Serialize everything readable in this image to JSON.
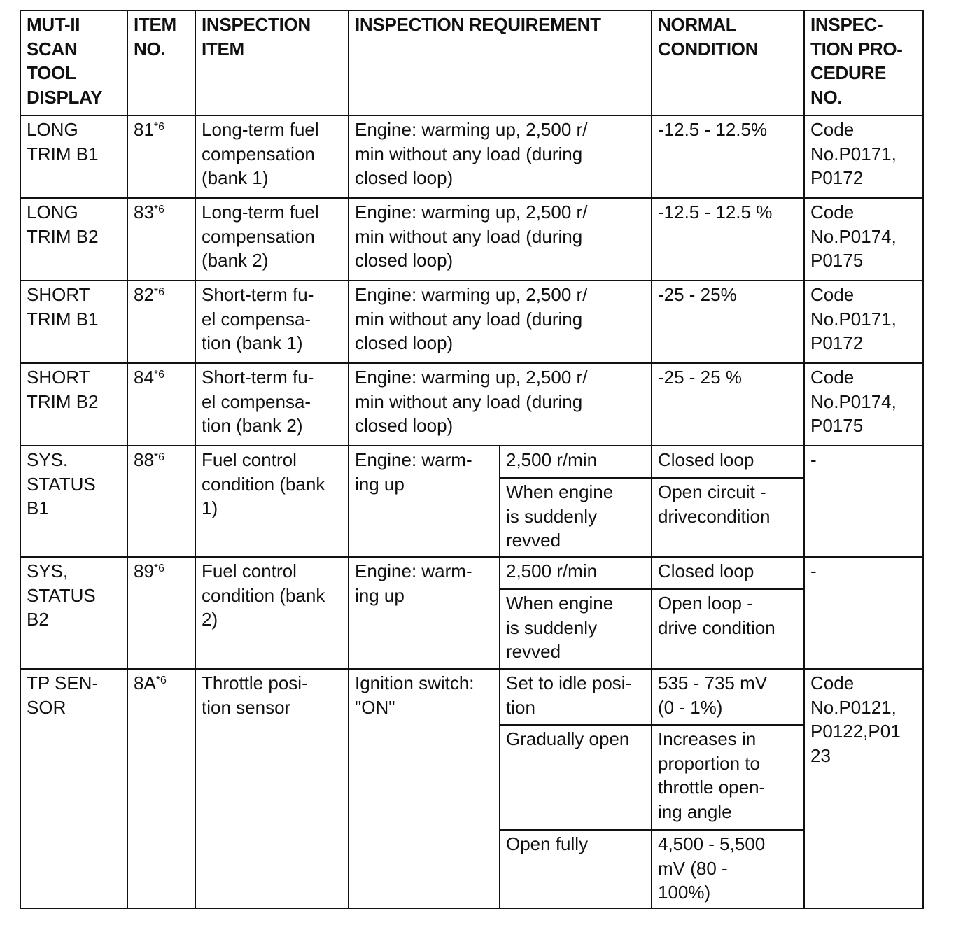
{
  "headers": [
    "MUT-II\nSCAN\nTOOL\nDISPLAY",
    "ITEM\nNO.",
    "INSPECTION\nITEM",
    "INSPECTION REQUIREMENT",
    "NORMAL\nCONDITION",
    "INSPEC-\nTION PRO-\nCEDURE\nNO."
  ],
  "rows": [
    {
      "display": "LONG\nTRIM B1",
      "item_no": "81",
      "note": "*6",
      "item": "Long-term fuel\ncompensation\n(bank 1)",
      "requirement": "Engine: warming up, 2,500 r/\nmin without any load (during\nclosed loop)",
      "normal": "-12.5 - 12.5%",
      "procedure": "Code\nNo.P0171,\nP0172"
    },
    {
      "display": "LONG\nTRIM B2",
      "item_no": "83",
      "note": "*6",
      "item": "Long-term fuel\ncompensation\n(bank 2)",
      "requirement": "Engine: warming up, 2,500 r/\nmin without any load (during\nclosed loop)",
      "normal": "-12.5 - 12.5 %",
      "procedure": "Code\nNo.P0174,\nP0175"
    },
    {
      "display": "SHORT\nTRIM B1",
      "item_no": "82",
      "note": "*6",
      "item": "Short-term fu-\nel compensa-\ntion (bank 1)",
      "requirement": "Engine: warming up, 2,500 r/\nmin without any load (during\nclosed loop)",
      "normal": "-25 - 25%",
      "procedure": "Code\nNo.P0171,\nP0172"
    },
    {
      "display": "SHORT\nTRIM B2",
      "item_no": "84",
      "note": "*6",
      "item": "Short-term fu-\nel compensa-\ntion (bank 2)",
      "requirement": "Engine: warming up,  2,500 r/\nmin without any load (during\nclosed loop)",
      "normal": "-25 - 25 %",
      "procedure": "Code\nNo.P0174,\nP0175"
    },
    {
      "display": "SYS.\nSTATUS\nB1",
      "item_no": "88",
      "note": "*6",
      "item": "Fuel control\ncondition (bank\n1)",
      "requirement": "Engine: warm-\ning up",
      "procedure": "-",
      "sub_rows": [
        {
          "condition": "2,500 r/min",
          "normal": "Closed loop"
        },
        {
          "condition": "When engine\nis suddenly\nrevved",
          "normal": "Open circuit -\ndrivecondition"
        }
      ]
    },
    {
      "display": "SYS,\nSTATUS\nB2",
      "item_no": "89",
      "note": "*6",
      "item": "Fuel control\ncondition (bank\n2)",
      "requirement": "Engine: warm-\ning up",
      "procedure": "-",
      "sub_rows": [
        {
          "condition": "2,500 r/min",
          "normal": "Closed loop"
        },
        {
          "condition": "When engine\nis suddenly\nrevved",
          "normal": "Open loop -\ndrive condition"
        }
      ]
    },
    {
      "display": "TP SEN-\nSOR",
      "item_no": "8A",
      "note": "*6",
      "item": "Throttle posi-\ntion sensor",
      "requirement": "Ignition switch:\n\"ON\"",
      "procedure": "Code\nNo.P0121,\nP0122,P01\n23",
      "sub_rows": [
        {
          "condition": "Set to idle posi-\ntion",
          "normal": "535 - 735 mV\n(0 - 1%)"
        },
        {
          "condition": "Gradually open",
          "normal": "Increases in\nproportion to\nthrottle open-\ning angle"
        },
        {
          "condition": "Open fully",
          "normal": "4,500 - 5,500\nmV (80 -\n100%)"
        }
      ]
    }
  ]
}
